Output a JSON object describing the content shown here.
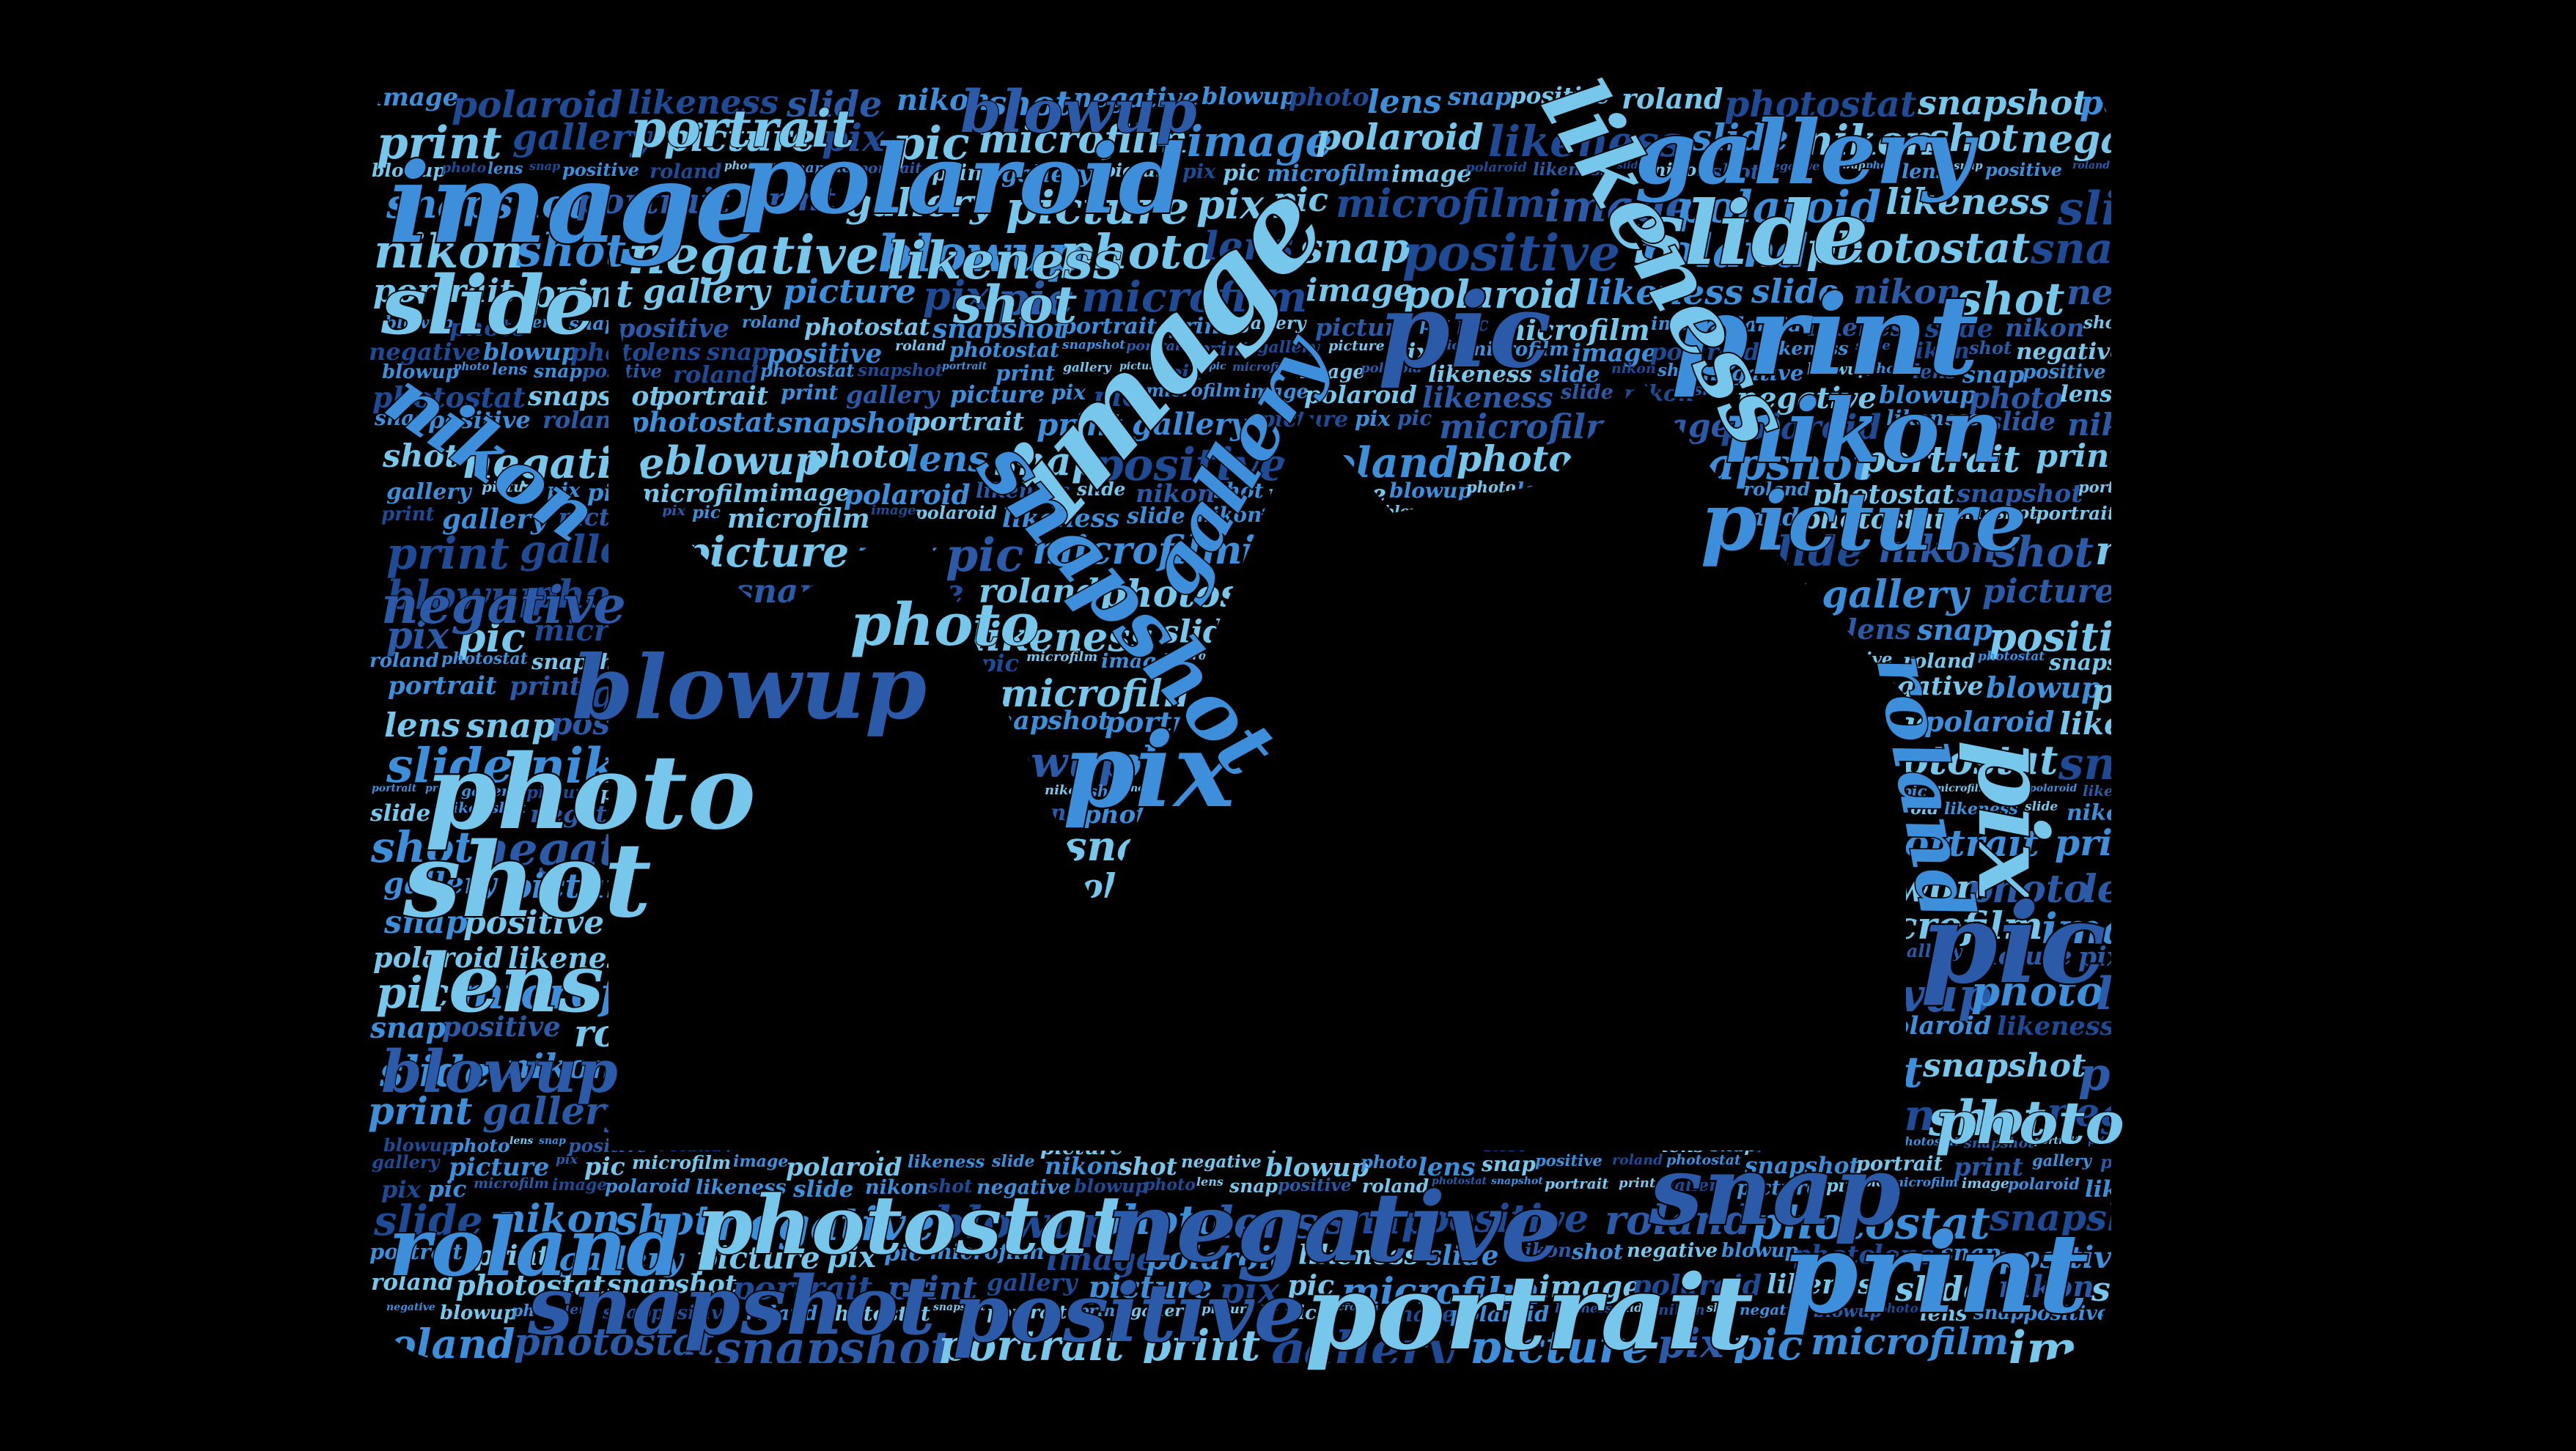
{
  "palette": {
    "background": "#000000",
    "light": "#77c6ec",
    "mid": "#3d8fdb",
    "dark": "#2a5aa8",
    "deep": "#1f4a96"
  },
  "words": [
    "image",
    "polaroid",
    "likeness",
    "slide",
    "nikon",
    "shot",
    "negative",
    "blowup",
    "photo",
    "lens",
    "snap",
    "positive",
    "roland",
    "photostat",
    "snapshot",
    "portrait",
    "print",
    "gallery",
    "picture",
    "pix",
    "pic",
    "microfilm"
  ],
  "shape": "picture-icon"
}
